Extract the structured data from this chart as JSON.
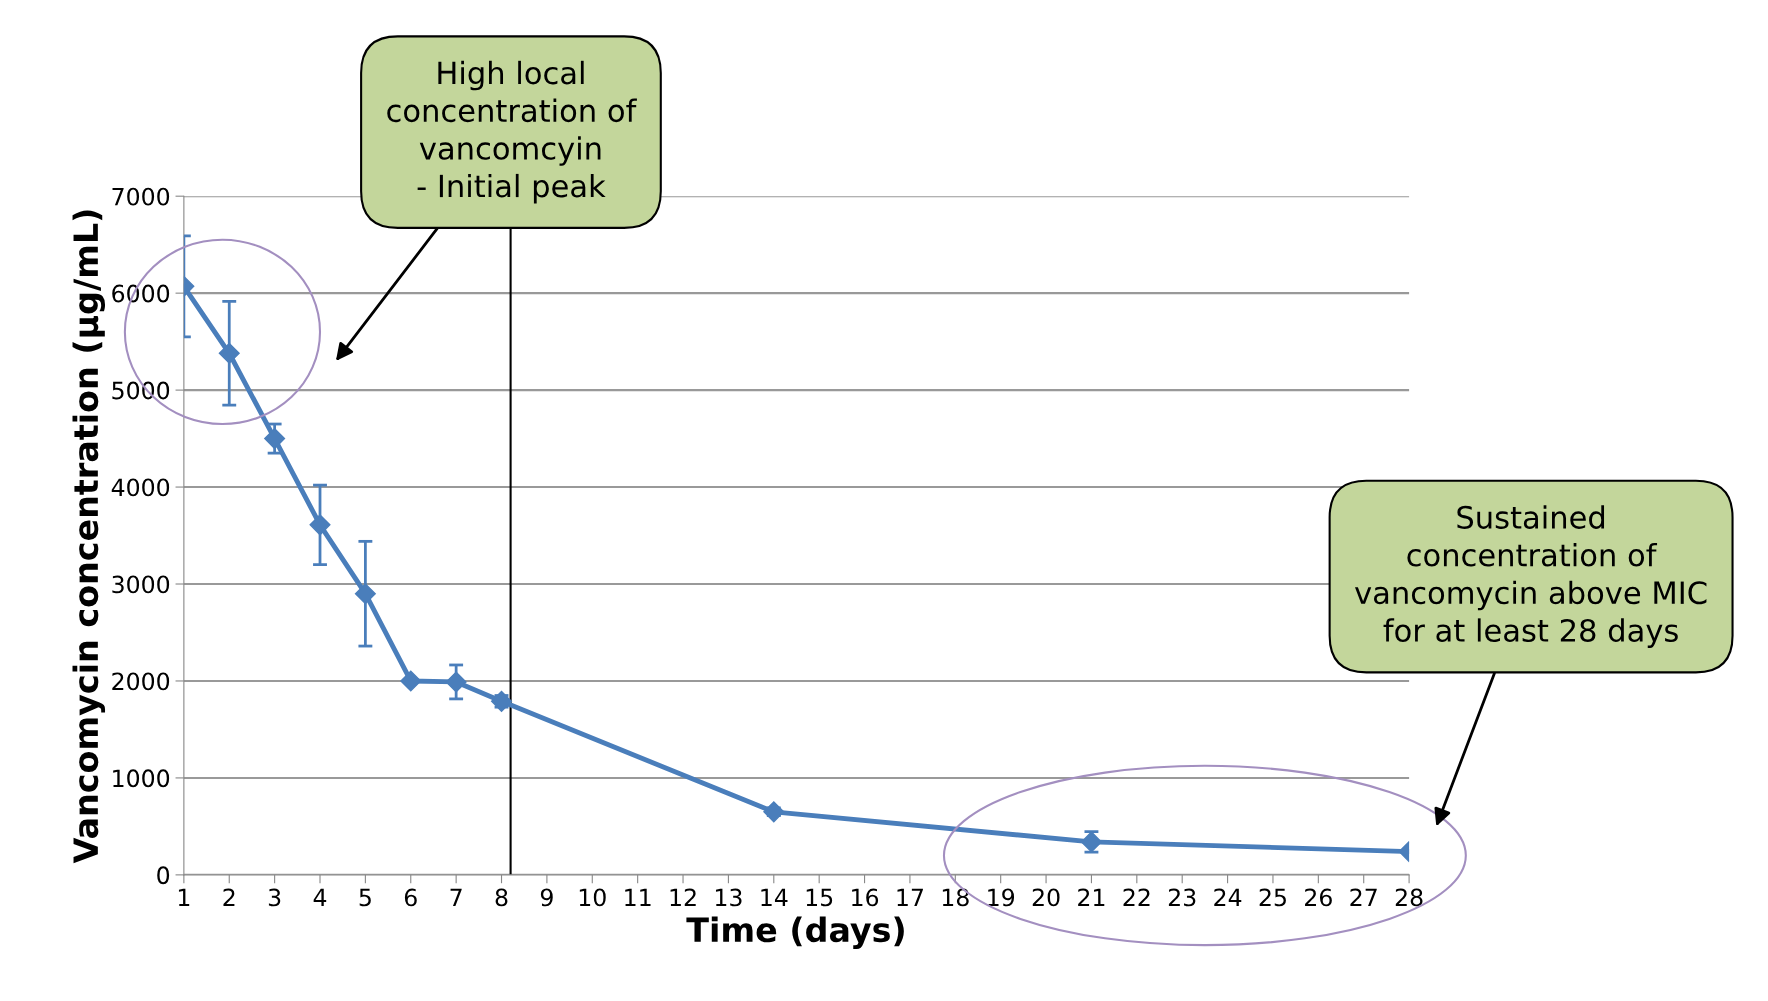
{
  "chart_data": {
    "type": "line",
    "xlabel": "Time (days)",
    "ylabel": "Vancomycin concentration (µg/mL)",
    "x": [
      1,
      2,
      3,
      4,
      5,
      6,
      7,
      8,
      14,
      21,
      28
    ],
    "series": [
      {
        "color": "#4a7ebb",
        "values": [
          6070,
          5380,
          4500,
          3610,
          2900,
          2000,
          1990,
          1790,
          650,
          340,
          240
        ],
        "errors": [
          520,
          535,
          150,
          410,
          540,
          null,
          175,
          60,
          40,
          105,
          null
        ]
      }
    ],
    "xlim": [
      1,
      28
    ],
    "xticks": [
      1,
      2,
      3,
      4,
      5,
      6,
      7,
      8,
      9,
      10,
      11,
      12,
      13,
      14,
      15,
      16,
      17,
      18,
      19,
      20,
      21,
      22,
      23,
      24,
      25,
      26,
      27,
      28
    ],
    "ylim": [
      0,
      7000
    ],
    "yticks": [
      0,
      1000,
      2000,
      3000,
      4000,
      5000,
      6000,
      7000
    ],
    "grid": "y",
    "marker": "diamond",
    "line_style": "solid",
    "legend": false,
    "ref_lines": [
      {
        "axis": "x",
        "value": 8.2,
        "color": "#000000"
      }
    ],
    "annotations": [
      "High local\nconcentration of\nvancomcyin\n- Initial peak",
      "Sustained\nconcentration of\nvancomycin above MIC\nfor at least 28 days"
    ]
  }
}
